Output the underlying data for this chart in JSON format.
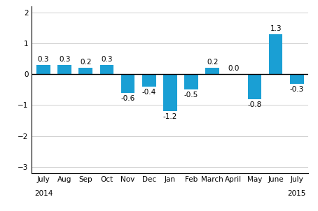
{
  "categories": [
    "July",
    "Aug",
    "Sep",
    "Oct",
    "Nov",
    "Dec",
    "Jan",
    "Feb",
    "March",
    "April",
    "May",
    "June",
    "July"
  ],
  "values": [
    0.3,
    0.3,
    0.2,
    0.3,
    -0.6,
    -0.4,
    -1.2,
    -0.5,
    0.2,
    0.0,
    -0.8,
    1.3,
    -0.3
  ],
  "bar_color": "#1a9fd4",
  "ylim": [
    -3.2,
    2.2
  ],
  "yticks": [
    -3,
    -2,
    -1,
    0,
    1,
    2
  ],
  "background_color": "#ffffff",
  "grid_color": "#d0d0d0",
  "label_fontsize": 7.5,
  "tick_fontsize": 7.5,
  "year_2014": "2014",
  "year_2015": "2015"
}
